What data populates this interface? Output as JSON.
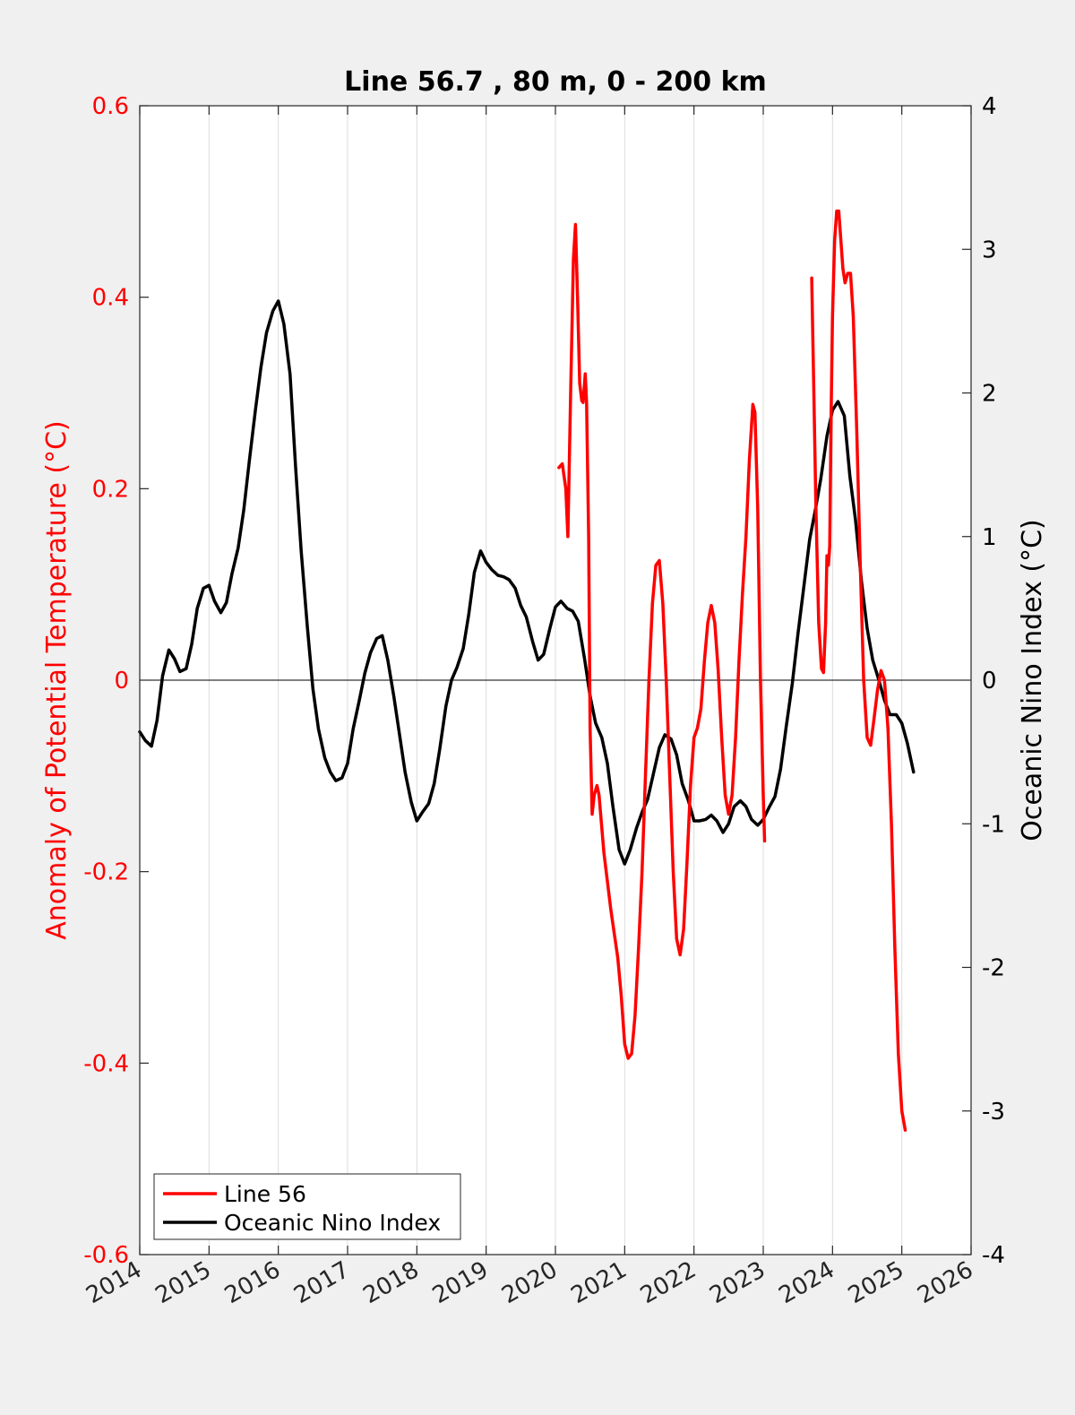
{
  "chart_data": {
    "type": "line",
    "title": "Line 56.7 , 80 m, 0 - 200 km",
    "xlabel": "",
    "ylabel_left": "Anomaly of Potential Temperature (°C)",
    "ylabel_right": "Oceanic Nino Index (°C)",
    "xlim": [
      2014,
      2026
    ],
    "ylim_left": [
      -0.6,
      0.6
    ],
    "ylim_right": [
      -4,
      4
    ],
    "x_ticks": [
      2014,
      2015,
      2016,
      2017,
      2018,
      2019,
      2020,
      2021,
      2022,
      2023,
      2024,
      2025,
      2026
    ],
    "x_tick_labels": [
      "2014",
      "2015",
      "2016",
      "2017",
      "2018",
      "2019",
      "2020",
      "2021",
      "2022",
      "2023",
      "2024",
      "2025",
      "2026"
    ],
    "y_left_ticks": [
      -0.6,
      -0.4,
      -0.2,
      0,
      0.2,
      0.4,
      0.6
    ],
    "y_left_tick_labels": [
      "-0.6",
      "-0.4",
      "-0.2",
      "0",
      "0.2",
      "0.4",
      "0.6"
    ],
    "y_right_ticks": [
      -4,
      -3,
      -2,
      -1,
      0,
      1,
      2,
      3,
      4
    ],
    "y_right_tick_labels": [
      "-4",
      "-3",
      "-2",
      "-1",
      "0",
      "1",
      "2",
      "3",
      "4"
    ],
    "grid": "vertical",
    "legend_position": "bottom-left",
    "colors": {
      "line56": "#ff0000",
      "oni": "#000000",
      "left_axis": "#ff0000",
      "right_axis": "#000000",
      "background": "#f0f0f0",
      "plot_background": "#ffffff",
      "grid": "#dcdcdc"
    },
    "series": [
      {
        "name": "Line 56",
        "axis": "left",
        "segments": [
          [
            [
              2020.05,
              0.222
            ],
            [
              2020.1,
              0.226
            ],
            [
              2020.15,
              0.2
            ],
            [
              2020.18,
              0.15
            ],
            [
              2020.22,
              0.3
            ],
            [
              2020.26,
              0.44
            ],
            [
              2020.29,
              0.476
            ],
            [
              2020.32,
              0.4
            ],
            [
              2020.35,
              0.31
            ],
            [
              2020.38,
              0.292
            ],
            [
              2020.4,
              0.29
            ],
            [
              2020.43,
              0.32
            ],
            [
              2020.45,
              0.29
            ],
            [
              2020.48,
              0.15
            ],
            [
              2020.5,
              -0.05
            ],
            [
              2020.53,
              -0.14
            ],
            [
              2020.56,
              -0.12
            ],
            [
              2020.6,
              -0.11
            ],
            [
              2020.63,
              -0.12
            ],
            [
              2020.7,
              -0.18
            ],
            [
              2020.8,
              -0.24
            ],
            [
              2020.9,
              -0.29
            ],
            [
              2020.95,
              -0.33
            ],
            [
              2021.0,
              -0.38
            ],
            [
              2021.05,
              -0.395
            ],
            [
              2021.1,
              -0.39
            ],
            [
              2021.15,
              -0.35
            ],
            [
              2021.2,
              -0.28
            ],
            [
              2021.25,
              -0.2
            ],
            [
              2021.3,
              -0.1
            ],
            [
              2021.35,
              0.0
            ],
            [
              2021.4,
              0.08
            ],
            [
              2021.45,
              0.12
            ],
            [
              2021.5,
              0.125
            ],
            [
              2021.55,
              0.08
            ],
            [
              2021.6,
              0.0
            ],
            [
              2021.65,
              -0.1
            ],
            [
              2021.7,
              -0.2
            ],
            [
              2021.75,
              -0.27
            ],
            [
              2021.8,
              -0.287
            ],
            [
              2021.85,
              -0.26
            ],
            [
              2021.9,
              -0.19
            ],
            [
              2021.95,
              -0.11
            ],
            [
              2022.0,
              -0.06
            ],
            [
              2022.05,
              -0.05
            ],
            [
              2022.1,
              -0.03
            ],
            [
              2022.15,
              0.02
            ],
            [
              2022.2,
              0.06
            ],
            [
              2022.25,
              0.078
            ],
            [
              2022.3,
              0.06
            ],
            [
              2022.35,
              0.01
            ],
            [
              2022.4,
              -0.06
            ],
            [
              2022.45,
              -0.12
            ],
            [
              2022.5,
              -0.14
            ],
            [
              2022.55,
              -0.12
            ],
            [
              2022.6,
              -0.06
            ],
            [
              2022.65,
              0.02
            ],
            [
              2022.7,
              0.09
            ],
            [
              2022.75,
              0.15
            ],
            [
              2022.8,
              0.23
            ],
            [
              2022.85,
              0.288
            ],
            [
              2022.88,
              0.28
            ],
            [
              2022.92,
              0.18
            ],
            [
              2022.96,
              0.0
            ],
            [
              2023.0,
              -0.12
            ],
            [
              2023.02,
              -0.168
            ]
          ],
          [
            [
              2023.7,
              0.42
            ],
            [
              2023.73,
              0.3
            ],
            [
              2023.76,
              0.18
            ],
            [
              2023.8,
              0.06
            ],
            [
              2023.84,
              0.012
            ],
            [
              2023.87,
              0.008
            ],
            [
              2023.9,
              0.06
            ],
            [
              2023.92,
              0.13
            ],
            [
              2023.94,
              0.12
            ],
            [
              2023.96,
              0.14
            ],
            [
              2023.98,
              0.28
            ],
            [
              2024.0,
              0.38
            ],
            [
              2024.03,
              0.46
            ],
            [
              2024.06,
              0.49
            ],
            [
              2024.09,
              0.49
            ],
            [
              2024.12,
              0.46
            ],
            [
              2024.15,
              0.43
            ],
            [
              2024.18,
              0.415
            ],
            [
              2024.22,
              0.425
            ],
            [
              2024.26,
              0.425
            ],
            [
              2024.3,
              0.38
            ],
            [
              2024.35,
              0.26
            ],
            [
              2024.4,
              0.12
            ],
            [
              2024.45,
              0.0
            ],
            [
              2024.5,
              -0.06
            ],
            [
              2024.55,
              -0.068
            ],
            [
              2024.6,
              -0.04
            ],
            [
              2024.65,
              -0.01
            ],
            [
              2024.7,
              0.01
            ],
            [
              2024.75,
              0.0
            ],
            [
              2024.8,
              -0.05
            ],
            [
              2024.85,
              -0.15
            ],
            [
              2024.9,
              -0.28
            ],
            [
              2024.95,
              -0.39
            ],
            [
              2025.0,
              -0.45
            ],
            [
              2025.05,
              -0.47
            ]
          ]
        ]
      },
      {
        "name": "Oceanic Nino Index",
        "axis": "right",
        "segments": [
          [
            [
              2014.0,
              -0.36
            ],
            [
              2014.08,
              -0.42
            ],
            [
              2014.17,
              -0.46
            ],
            [
              2014.25,
              -0.28
            ],
            [
              2014.33,
              0.03
            ],
            [
              2014.42,
              0.21
            ],
            [
              2014.5,
              0.15
            ],
            [
              2014.58,
              0.06
            ],
            [
              2014.67,
              0.08
            ],
            [
              2014.75,
              0.25
            ],
            [
              2014.83,
              0.5
            ],
            [
              2014.92,
              0.64
            ],
            [
              2015.0,
              0.66
            ],
            [
              2015.08,
              0.55
            ],
            [
              2015.17,
              0.47
            ],
            [
              2015.25,
              0.54
            ],
            [
              2015.33,
              0.74
            ],
            [
              2015.42,
              0.92
            ],
            [
              2015.5,
              1.18
            ],
            [
              2015.58,
              1.52
            ],
            [
              2015.67,
              1.88
            ],
            [
              2015.75,
              2.18
            ],
            [
              2015.83,
              2.42
            ],
            [
              2015.92,
              2.57
            ],
            [
              2016.0,
              2.64
            ],
            [
              2016.08,
              2.48
            ],
            [
              2016.17,
              2.13
            ],
            [
              2016.25,
              1.48
            ],
            [
              2016.33,
              0.9
            ],
            [
              2016.42,
              0.37
            ],
            [
              2016.5,
              -0.06
            ],
            [
              2016.58,
              -0.34
            ],
            [
              2016.67,
              -0.54
            ],
            [
              2016.75,
              -0.64
            ],
            [
              2016.83,
              -0.7
            ],
            [
              2016.92,
              -0.68
            ],
            [
              2017.0,
              -0.58
            ],
            [
              2017.08,
              -0.34
            ],
            [
              2017.17,
              -0.14
            ],
            [
              2017.25,
              0.05
            ],
            [
              2017.33,
              0.19
            ],
            [
              2017.42,
              0.29
            ],
            [
              2017.5,
              0.31
            ],
            [
              2017.58,
              0.14
            ],
            [
              2017.67,
              -0.12
            ],
            [
              2017.75,
              -0.38
            ],
            [
              2017.83,
              -0.64
            ],
            [
              2017.92,
              -0.85
            ],
            [
              2018.0,
              -0.98
            ],
            [
              2018.08,
              -0.92
            ],
            [
              2018.17,
              -0.86
            ],
            [
              2018.25,
              -0.72
            ],
            [
              2018.33,
              -0.48
            ],
            [
              2018.42,
              -0.18
            ],
            [
              2018.5,
              0.0
            ],
            [
              2018.58,
              0.09
            ],
            [
              2018.67,
              0.22
            ],
            [
              2018.75,
              0.46
            ],
            [
              2018.83,
              0.75
            ],
            [
              2018.92,
              0.9
            ],
            [
              2019.0,
              0.82
            ],
            [
              2019.08,
              0.77
            ],
            [
              2019.17,
              0.73
            ],
            [
              2019.25,
              0.72
            ],
            [
              2019.33,
              0.7
            ],
            [
              2019.42,
              0.64
            ],
            [
              2019.5,
              0.52
            ],
            [
              2019.58,
              0.44
            ],
            [
              2019.67,
              0.27
            ],
            [
              2019.75,
              0.14
            ],
            [
              2019.83,
              0.18
            ],
            [
              2019.92,
              0.36
            ],
            [
              2020.0,
              0.51
            ],
            [
              2020.08,
              0.55
            ],
            [
              2020.17,
              0.5
            ],
            [
              2020.25,
              0.48
            ],
            [
              2020.33,
              0.41
            ],
            [
              2020.42,
              0.15
            ],
            [
              2020.5,
              -0.11
            ],
            [
              2020.58,
              -0.3
            ],
            [
              2020.67,
              -0.4
            ],
            [
              2020.75,
              -0.58
            ],
            [
              2020.83,
              -0.88
            ],
            [
              2020.92,
              -1.18
            ],
            [
              2021.0,
              -1.28
            ],
            [
              2021.08,
              -1.18
            ],
            [
              2021.17,
              -1.03
            ],
            [
              2021.25,
              -0.92
            ],
            [
              2021.33,
              -0.83
            ],
            [
              2021.42,
              -0.64
            ],
            [
              2021.5,
              -0.47
            ],
            [
              2021.58,
              -0.38
            ],
            [
              2021.67,
              -0.41
            ],
            [
              2021.75,
              -0.52
            ],
            [
              2021.83,
              -0.72
            ],
            [
              2021.92,
              -0.84
            ],
            [
              2022.0,
              -0.98
            ],
            [
              2022.08,
              -0.98
            ],
            [
              2022.17,
              -0.97
            ],
            [
              2022.25,
              -0.94
            ],
            [
              2022.33,
              -0.98
            ],
            [
              2022.42,
              -1.06
            ],
            [
              2022.5,
              -1.0
            ],
            [
              2022.58,
              -0.88
            ],
            [
              2022.67,
              -0.84
            ],
            [
              2022.75,
              -0.88
            ],
            [
              2022.83,
              -0.97
            ],
            [
              2022.92,
              -1.01
            ],
            [
              2023.0,
              -0.97
            ],
            [
              2023.08,
              -0.89
            ],
            [
              2023.17,
              -0.81
            ],
            [
              2023.25,
              -0.62
            ],
            [
              2023.33,
              -0.33
            ],
            [
              2023.42,
              -0.02
            ],
            [
              2023.5,
              0.32
            ],
            [
              2023.58,
              0.63
            ],
            [
              2023.67,
              0.98
            ],
            [
              2023.75,
              1.18
            ],
            [
              2023.83,
              1.4
            ],
            [
              2023.92,
              1.7
            ],
            [
              2024.0,
              1.88
            ],
            [
              2024.08,
              1.94
            ],
            [
              2024.17,
              1.84
            ],
            [
              2024.25,
              1.42
            ],
            [
              2024.33,
              1.12
            ],
            [
              2024.42,
              0.68
            ],
            [
              2024.5,
              0.36
            ],
            [
              2024.58,
              0.14
            ],
            [
              2024.67,
              0.0
            ],
            [
              2024.75,
              -0.14
            ],
            [
              2024.83,
              -0.24
            ],
            [
              2024.92,
              -0.24
            ],
            [
              2025.0,
              -0.3
            ],
            [
              2025.08,
              -0.44
            ],
            [
              2025.17,
              -0.64
            ]
          ]
        ]
      }
    ]
  }
}
